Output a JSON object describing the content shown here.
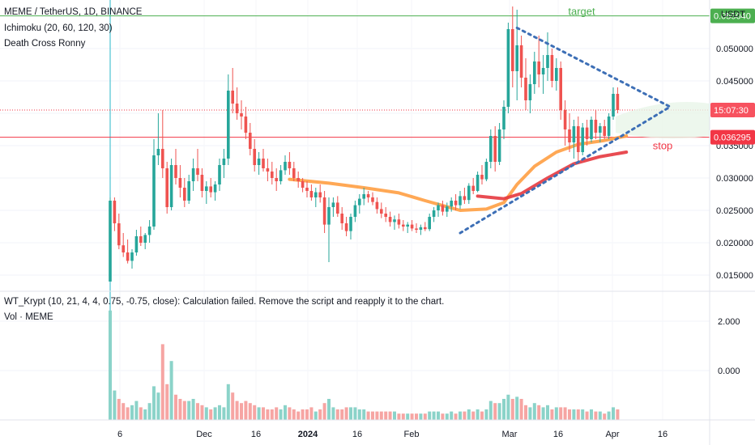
{
  "header": {
    "symbol_line": "MEME / TetherUS, 1D, BINANCE",
    "indicator1": "Ichimoku (20, 60, 120, 30)",
    "indicator2": "Death Cross Ronny",
    "lower_indicator": "WT_Krypt (10, 21, 4, 4, 0.75, -0.75, close): Calculation failed. Remove the script and reapply it to the chart.",
    "volume_label": "Vol · MEME",
    "currency": "USDT"
  },
  "annotations": {
    "target": "target",
    "stop": "stop"
  },
  "price_tags": {
    "target": "0.055040",
    "timer": "15:07:30",
    "stop": "0.036295"
  },
  "colors": {
    "up": "#26a69a",
    "down": "#ef5350",
    "target_line": "#4caf50",
    "stop_line": "#f23645",
    "orange_ma": "#ff9f43",
    "red_ma": "#e5393f",
    "dotted": "#3d6fb6"
  },
  "chart_data": {
    "type": "candlestick",
    "price_axis": {
      "ticks": [
        "0.050000",
        "0.045000",
        "0.040000",
        "0.035000",
        "0.030000",
        "0.025000",
        "0.020000",
        "0.015000"
      ],
      "ylim": [
        0.0135,
        0.0575
      ]
    },
    "lower_axis": {
      "ticks": [
        "2.000",
        "0.000"
      ]
    },
    "x_ticks": [
      "6",
      "Dec",
      "16",
      "2024",
      "16",
      "Feb",
      "Mar",
      "16",
      "Apr",
      "16"
    ],
    "levels": {
      "target": 0.05504,
      "stop": 0.036295,
      "current": 0.0405
    },
    "candles": [
      [
        0.014,
        0.027,
        0.014,
        0.0265
      ],
      [
        0.0265,
        0.027,
        0.0218,
        0.023
      ],
      [
        0.023,
        0.0245,
        0.019,
        0.0196
      ],
      [
        0.0196,
        0.0215,
        0.0178,
        0.0185
      ],
      [
        0.0185,
        0.0205,
        0.0168,
        0.0172
      ],
      [
        0.0172,
        0.019,
        0.016,
        0.0185
      ],
      [
        0.0185,
        0.022,
        0.018,
        0.021
      ],
      [
        0.021,
        0.0225,
        0.0195,
        0.02
      ],
      [
        0.02,
        0.0215,
        0.019,
        0.0212
      ],
      [
        0.0212,
        0.0235,
        0.02,
        0.0225
      ],
      [
        0.0225,
        0.036,
        0.022,
        0.0335
      ],
      [
        0.0335,
        0.04,
        0.032,
        0.0345
      ],
      [
        0.0345,
        0.0405,
        0.03,
        0.0315
      ],
      [
        0.0315,
        0.0325,
        0.0245,
        0.0255
      ],
      [
        0.0255,
        0.033,
        0.025,
        0.032
      ],
      [
        0.032,
        0.0345,
        0.029,
        0.03
      ],
      [
        0.03,
        0.032,
        0.027,
        0.0285
      ],
      [
        0.0285,
        0.03,
        0.0255,
        0.0265
      ],
      [
        0.0265,
        0.0305,
        0.026,
        0.0295
      ],
      [
        0.0295,
        0.033,
        0.028,
        0.0315
      ],
      [
        0.0315,
        0.0345,
        0.0295,
        0.0305
      ],
      [
        0.0305,
        0.0315,
        0.027,
        0.028
      ],
      [
        0.028,
        0.0295,
        0.026,
        0.0287
      ],
      [
        0.0287,
        0.03,
        0.027,
        0.0278
      ],
      [
        0.0278,
        0.0295,
        0.0265,
        0.029
      ],
      [
        0.029,
        0.033,
        0.028,
        0.032
      ],
      [
        0.032,
        0.0345,
        0.03,
        0.033
      ],
      [
        0.033,
        0.046,
        0.032,
        0.0435
      ],
      [
        0.0435,
        0.047,
        0.04,
        0.0415
      ],
      [
        0.0415,
        0.044,
        0.039,
        0.04
      ],
      [
        0.04,
        0.042,
        0.0375,
        0.0395
      ],
      [
        0.0395,
        0.041,
        0.036,
        0.037
      ],
      [
        0.037,
        0.0385,
        0.0335,
        0.0345
      ],
      [
        0.0345,
        0.036,
        0.031,
        0.032
      ],
      [
        0.032,
        0.034,
        0.0305,
        0.033
      ],
      [
        0.033,
        0.0345,
        0.031,
        0.0315
      ],
      [
        0.0315,
        0.033,
        0.0295,
        0.031
      ],
      [
        0.031,
        0.0325,
        0.029,
        0.03
      ],
      [
        0.03,
        0.0315,
        0.028,
        0.0295
      ],
      [
        0.0295,
        0.032,
        0.029,
        0.0312
      ],
      [
        0.0312,
        0.0335,
        0.0305,
        0.0325
      ],
      [
        0.0325,
        0.034,
        0.0305,
        0.0315
      ],
      [
        0.0315,
        0.0325,
        0.0295,
        0.03
      ],
      [
        0.03,
        0.031,
        0.0285,
        0.0295
      ],
      [
        0.0295,
        0.03,
        0.0278,
        0.0285
      ],
      [
        0.0285,
        0.0295,
        0.027,
        0.028
      ],
      [
        0.028,
        0.029,
        0.0265,
        0.027
      ],
      [
        0.027,
        0.0285,
        0.0255,
        0.0278
      ],
      [
        0.0278,
        0.029,
        0.0262,
        0.027
      ],
      [
        0.027,
        0.028,
        0.0215,
        0.0228
      ],
      [
        0.0228,
        0.027,
        0.017,
        0.0255
      ],
      [
        0.0255,
        0.027,
        0.024,
        0.0262
      ],
      [
        0.0262,
        0.0272,
        0.024,
        0.0245
      ],
      [
        0.0245,
        0.0255,
        0.022,
        0.023
      ],
      [
        0.023,
        0.024,
        0.021,
        0.0218
      ],
      [
        0.0218,
        0.0245,
        0.0205,
        0.024
      ],
      [
        0.024,
        0.0265,
        0.0232,
        0.0258
      ],
      [
        0.0258,
        0.0275,
        0.0245,
        0.0268
      ],
      [
        0.0268,
        0.0285,
        0.0258,
        0.0275
      ],
      [
        0.0275,
        0.028,
        0.0262,
        0.027
      ],
      [
        0.027,
        0.0278,
        0.0258,
        0.0263
      ],
      [
        0.0263,
        0.027,
        0.0245,
        0.0252
      ],
      [
        0.0252,
        0.0262,
        0.0238,
        0.0245
      ],
      [
        0.0245,
        0.0255,
        0.0232,
        0.024
      ],
      [
        0.024,
        0.0248,
        0.0225,
        0.0232
      ],
      [
        0.0232,
        0.0242,
        0.022,
        0.0236
      ],
      [
        0.0236,
        0.0245,
        0.0222,
        0.0228
      ],
      [
        0.0228,
        0.0235,
        0.0218,
        0.0225
      ],
      [
        0.0225,
        0.0232,
        0.0215,
        0.0228
      ],
      [
        0.0228,
        0.0235,
        0.0218,
        0.0222
      ],
      [
        0.0222,
        0.023,
        0.0215,
        0.022
      ],
      [
        0.022,
        0.0228,
        0.0212,
        0.0224
      ],
      [
        0.0224,
        0.0232,
        0.0218,
        0.0221
      ],
      [
        0.0221,
        0.0245,
        0.0218,
        0.024
      ],
      [
        0.024,
        0.0255,
        0.0232,
        0.025
      ],
      [
        0.025,
        0.0262,
        0.024,
        0.0258
      ],
      [
        0.0258,
        0.0265,
        0.0242,
        0.0248
      ],
      [
        0.0248,
        0.0262,
        0.024,
        0.0256
      ],
      [
        0.0256,
        0.027,
        0.0248,
        0.0265
      ],
      [
        0.0265,
        0.0275,
        0.025,
        0.0258
      ],
      [
        0.0258,
        0.028,
        0.0252,
        0.0272
      ],
      [
        0.0272,
        0.0285,
        0.026,
        0.0266
      ],
      [
        0.0266,
        0.0292,
        0.026,
        0.0288
      ],
      [
        0.0288,
        0.03,
        0.0275,
        0.028
      ],
      [
        0.028,
        0.031,
        0.0278,
        0.0305
      ],
      [
        0.0305,
        0.032,
        0.029,
        0.0298
      ],
      [
        0.0298,
        0.033,
        0.0295,
        0.0325
      ],
      [
        0.0325,
        0.0375,
        0.0315,
        0.0365
      ],
      [
        0.0365,
        0.038,
        0.031,
        0.0325
      ],
      [
        0.0325,
        0.0385,
        0.032,
        0.0375
      ],
      [
        0.0375,
        0.042,
        0.036,
        0.041
      ],
      [
        0.041,
        0.054,
        0.04,
        0.053
      ],
      [
        0.053,
        0.0565,
        0.044,
        0.0465
      ],
      [
        0.0465,
        0.056,
        0.042,
        0.0505
      ],
      [
        0.0505,
        0.052,
        0.044,
        0.0455
      ],
      [
        0.0455,
        0.0485,
        0.0405,
        0.042
      ],
      [
        0.042,
        0.046,
        0.04,
        0.0445
      ],
      [
        0.0445,
        0.0495,
        0.043,
        0.048
      ],
      [
        0.048,
        0.052,
        0.044,
        0.046
      ],
      [
        0.046,
        0.049,
        0.043,
        0.047
      ],
      [
        0.047,
        0.0525,
        0.045,
        0.049
      ],
      [
        0.049,
        0.05,
        0.044,
        0.045
      ],
      [
        0.045,
        0.0485,
        0.0435,
        0.047
      ],
      [
        0.047,
        0.048,
        0.039,
        0.0405
      ],
      [
        0.0405,
        0.042,
        0.035,
        0.0375
      ],
      [
        0.0375,
        0.04,
        0.034,
        0.0355
      ],
      [
        0.0355,
        0.039,
        0.033,
        0.038
      ],
      [
        0.038,
        0.0395,
        0.0325,
        0.034
      ],
      [
        0.034,
        0.0385,
        0.0335,
        0.0378
      ],
      [
        0.0378,
        0.039,
        0.035,
        0.036
      ],
      [
        0.036,
        0.0395,
        0.0355,
        0.039
      ],
      [
        0.039,
        0.0405,
        0.036,
        0.037
      ],
      [
        0.037,
        0.0385,
        0.0355,
        0.038
      ],
      [
        0.038,
        0.039,
        0.036,
        0.0365
      ],
      [
        0.0365,
        0.04,
        0.036,
        0.0395
      ],
      [
        0.0395,
        0.044,
        0.039,
        0.043
      ],
      [
        0.043,
        0.044,
        0.04,
        0.0405
      ]
    ],
    "volume": [
      [
        5.2,
        1
      ],
      [
        1.4,
        1
      ],
      [
        1.0,
        0
      ],
      [
        0.8,
        0
      ],
      [
        0.6,
        0
      ],
      [
        0.7,
        1
      ],
      [
        0.9,
        1
      ],
      [
        0.6,
        0
      ],
      [
        0.5,
        1
      ],
      [
        0.8,
        1
      ],
      [
        1.6,
        1
      ],
      [
        1.3,
        1
      ],
      [
        3.6,
        0
      ],
      [
        1.7,
        0
      ],
      [
        2.8,
        1
      ],
      [
        1.2,
        0
      ],
      [
        1.0,
        0
      ],
      [
        0.9,
        0
      ],
      [
        0.9,
        1
      ],
      [
        1.0,
        1
      ],
      [
        0.8,
        0
      ],
      [
        0.7,
        0
      ],
      [
        0.6,
        1
      ],
      [
        0.5,
        0
      ],
      [
        0.6,
        1
      ],
      [
        0.7,
        1
      ],
      [
        0.6,
        1
      ],
      [
        1.7,
        1
      ],
      [
        1.3,
        0
      ],
      [
        0.9,
        0
      ],
      [
        0.8,
        0
      ],
      [
        0.9,
        0
      ],
      [
        0.8,
        0
      ],
      [
        0.7,
        0
      ],
      [
        0.6,
        1
      ],
      [
        0.6,
        0
      ],
      [
        0.5,
        0
      ],
      [
        0.5,
        0
      ],
      [
        0.6,
        0
      ],
      [
        0.5,
        1
      ],
      [
        0.7,
        1
      ],
      [
        0.6,
        0
      ],
      [
        0.5,
        0
      ],
      [
        0.4,
        0
      ],
      [
        0.5,
        0
      ],
      [
        0.5,
        0
      ],
      [
        0.6,
        0
      ],
      [
        0.4,
        1
      ],
      [
        0.5,
        0
      ],
      [
        0.8,
        0
      ],
      [
        1.0,
        1
      ],
      [
        0.6,
        1
      ],
      [
        0.5,
        0
      ],
      [
        0.5,
        0
      ],
      [
        0.6,
        0
      ],
      [
        0.6,
        1
      ],
      [
        0.6,
        1
      ],
      [
        0.5,
        1
      ],
      [
        0.5,
        1
      ],
      [
        0.4,
        0
      ],
      [
        0.4,
        0
      ],
      [
        0.4,
        0
      ],
      [
        0.4,
        0
      ],
      [
        0.4,
        0
      ],
      [
        0.4,
        0
      ],
      [
        0.4,
        1
      ],
      [
        0.3,
        0
      ],
      [
        0.3,
        0
      ],
      [
        0.3,
        1
      ],
      [
        0.3,
        0
      ],
      [
        0.3,
        0
      ],
      [
        0.3,
        1
      ],
      [
        0.3,
        0
      ],
      [
        0.4,
        1
      ],
      [
        0.4,
        1
      ],
      [
        0.4,
        1
      ],
      [
        0.3,
        0
      ],
      [
        0.3,
        1
      ],
      [
        0.4,
        1
      ],
      [
        0.3,
        0
      ],
      [
        0.4,
        1
      ],
      [
        0.4,
        0
      ],
      [
        0.5,
        1
      ],
      [
        0.4,
        0
      ],
      [
        0.5,
        1
      ],
      [
        0.4,
        0
      ],
      [
        0.5,
        1
      ],
      [
        0.9,
        1
      ],
      [
        0.8,
        0
      ],
      [
        0.8,
        1
      ],
      [
        1.0,
        1
      ],
      [
        1.2,
        1
      ],
      [
        1.0,
        0
      ],
      [
        1.1,
        1
      ],
      [
        1.0,
        0
      ],
      [
        0.7,
        0
      ],
      [
        0.6,
        1
      ],
      [
        0.8,
        1
      ],
      [
        0.7,
        0
      ],
      [
        0.6,
        1
      ],
      [
        0.7,
        1
      ],
      [
        0.5,
        0
      ],
      [
        0.6,
        1
      ],
      [
        0.6,
        0
      ],
      [
        0.6,
        0
      ],
      [
        0.5,
        0
      ],
      [
        0.5,
        1
      ],
      [
        0.5,
        0
      ],
      [
        0.5,
        1
      ],
      [
        0.4,
        0
      ],
      [
        0.5,
        1
      ],
      [
        0.4,
        0
      ],
      [
        0.4,
        1
      ],
      [
        0.3,
        0
      ],
      [
        0.4,
        1
      ],
      [
        0.6,
        1
      ],
      [
        0.5,
        0
      ]
    ],
    "orange_ma": [
      [
        41,
        0.0298
      ],
      [
        50,
        0.0292
      ],
      [
        58,
        0.0285
      ],
      [
        66,
        0.0277
      ],
      [
        72,
        0.0265
      ],
      [
        80,
        0.025
      ],
      [
        86,
        0.0252
      ],
      [
        90,
        0.0262
      ],
      [
        93,
        0.029
      ],
      [
        97,
        0.0318
      ],
      [
        102,
        0.034
      ],
      [
        107,
        0.0352
      ],
      [
        113,
        0.0358
      ],
      [
        118,
        0.0365
      ]
    ],
    "red_ma": [
      [
        84,
        0.0272
      ],
      [
        90,
        0.0268
      ],
      [
        94,
        0.0276
      ],
      [
        100,
        0.03
      ],
      [
        106,
        0.0322
      ],
      [
        112,
        0.0333
      ],
      [
        118,
        0.034
      ]
    ],
    "dotted_lines": [
      [
        [
          80,
          0.0215
        ],
        [
          128,
          0.041
        ]
      ],
      [
        [
          93,
          0.0532
        ],
        [
          128,
          0.041
        ]
      ]
    ]
  }
}
